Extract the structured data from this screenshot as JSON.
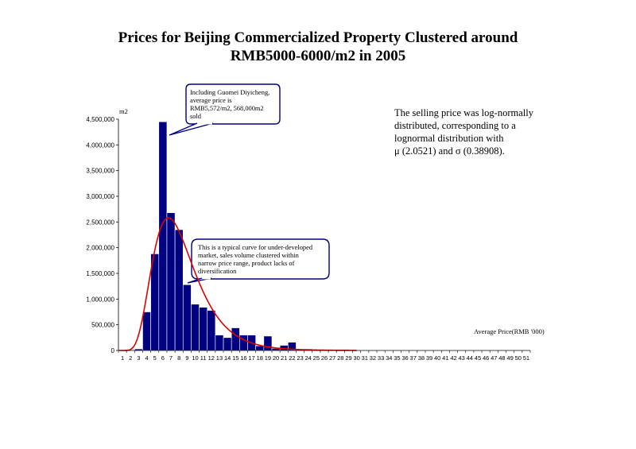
{
  "title_lines": [
    "Prices for Beijing Commercialized Property Clustered around",
    "RMB5000-6000/m2 in 2005"
  ],
  "note_lines": [
    "The selling price was log-normally",
    "distributed, corresponding to a",
    "lognormal distribution with",
    " μ (2.0521) and σ (0.38908)."
  ],
  "callout1_lines": [
    "Including Guomei Diyicheng,",
    "average price is",
    "RMB5,572/m2,  568,000m2",
    "sold"
  ],
  "callout2_lines": [
    "This is a typical curve for under-developed",
    "market, sales volume clustered within",
    "narrow price range, product lacks of",
    "diversification"
  ],
  "colors": {
    "bar": "#000080",
    "curve": "#e00000",
    "callout_border": "#000080"
  },
  "chart_data": {
    "type": "bar",
    "ylabel": "m2",
    "xlabel": "Average Price(RMB '000)",
    "ylim": [
      0,
      4500000
    ],
    "yticks": [
      0,
      500000,
      1000000,
      1500000,
      2000000,
      2500000,
      3000000,
      3500000,
      4000000,
      4500000
    ],
    "ytick_labels": [
      "0",
      "500,000",
      "1,000,000",
      "1,500,000",
      "2,000,000",
      "2,500,000",
      "3,000,000",
      "3,500,000",
      "4,000,000",
      "4,500,000"
    ],
    "categories": [
      "1",
      "2",
      "3",
      "4",
      "5",
      "6",
      "7",
      "8",
      "9",
      "10",
      "11",
      "12",
      "13",
      "14",
      "15",
      "16",
      "17",
      "18",
      "19",
      "20",
      "21",
      "22",
      "23",
      "24",
      "25",
      "26",
      "27",
      "28",
      "29",
      "30",
      "31",
      "32",
      "33",
      "34",
      "35",
      "36",
      "37",
      "38",
      "39",
      "40",
      "41",
      "42",
      "43",
      "44",
      "45",
      "46",
      "47",
      "48",
      "49",
      "50",
      "51"
    ],
    "values": [
      0,
      10000,
      30000,
      750000,
      1880000,
      4450000,
      2680000,
      2350000,
      1280000,
      900000,
      840000,
      780000,
      300000,
      250000,
      440000,
      300000,
      300000,
      90000,
      280000,
      40000,
      100000,
      160000,
      20000,
      30000,
      10000,
      5000,
      5000,
      3000,
      0,
      0,
      0,
      0,
      0,
      0,
      0,
      0,
      0,
      0,
      0,
      0,
      0,
      0,
      0,
      0,
      0,
      0,
      0,
      0,
      0,
      0,
      0
    ],
    "lognormal_fit": {
      "mu": 2.0521,
      "sigma": 0.38908,
      "peak_value": 2580000
    },
    "grid": false,
    "legend": "none"
  }
}
